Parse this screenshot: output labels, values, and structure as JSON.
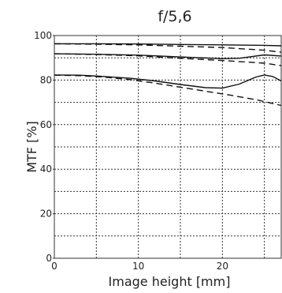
{
  "chart_data": {
    "type": "line",
    "title": "f/5,6",
    "xlabel": "Image height [mm]",
    "ylabel": "MTF [%]",
    "xlim": [
      0,
      27
    ],
    "ylim": [
      0,
      100
    ],
    "x_ticks": [
      0,
      10,
      20
    ],
    "y_ticks": [
      0,
      20,
      40,
      60,
      80,
      100
    ],
    "grid": true,
    "grid_style": "dotted",
    "legend": "none",
    "series": [
      {
        "style": "solid",
        "x": [
          0,
          5,
          10,
          15,
          20,
          25,
          27
        ],
        "y": [
          96.3,
          96.3,
          96.2,
          96.0,
          95.8,
          95.6,
          95.4
        ]
      },
      {
        "style": "dashed",
        "x": [
          0,
          5,
          10,
          15,
          20,
          25,
          27
        ],
        "y": [
          96.3,
          96.1,
          95.8,
          95.2,
          94.6,
          93.4,
          92.5
        ]
      },
      {
        "style": "solid",
        "x": [
          0,
          5,
          10,
          15,
          20,
          22,
          25,
          27
        ],
        "y": [
          91.8,
          91.6,
          91.2,
          90.4,
          89.6,
          89.8,
          91.3,
          90.8
        ]
      },
      {
        "style": "dashed",
        "x": [
          0,
          5,
          10,
          15,
          20,
          25,
          27
        ],
        "y": [
          91.8,
          91.5,
          90.9,
          89.8,
          88.8,
          87.6,
          86.5
        ]
      },
      {
        "style": "solid",
        "x": [
          0,
          3,
          6,
          9,
          12,
          15,
          18,
          20,
          22,
          24,
          25,
          26,
          27
        ],
        "y": [
          82.3,
          82.2,
          81.6,
          80.8,
          79.6,
          78.0,
          76.6,
          76.4,
          78.2,
          81.4,
          82.3,
          81.6,
          79.6
        ]
      },
      {
        "style": "dashed",
        "x": [
          0,
          3,
          6,
          9,
          12,
          15,
          18,
          21,
          24,
          27
        ],
        "y": [
          82.2,
          82.0,
          81.3,
          80.2,
          78.6,
          76.8,
          75.0,
          73.2,
          71.2,
          68.6
        ]
      }
    ],
    "colors": {
      "line": "#111111",
      "grid": "#333333",
      "text": "#222222"
    }
  }
}
